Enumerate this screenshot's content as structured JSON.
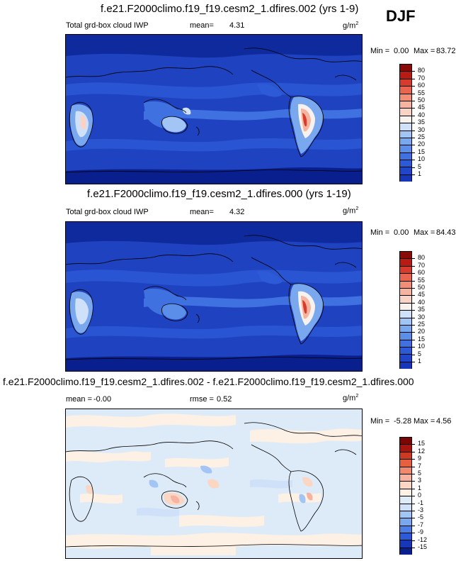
{
  "season": "DJF",
  "colors": {
    "iwp": [
      "#0a1f8e",
      "#1737b8",
      "#2146c7",
      "#2d5ad6",
      "#3f72e0",
      "#5a8ee8",
      "#7aa8ef",
      "#a3c5f5",
      "#cfe1f9",
      "#f7f2ee",
      "#f9d4c6",
      "#f6b39f",
      "#f08e77",
      "#e86550",
      "#d63c2c",
      "#b81b14",
      "#8a0a08"
    ],
    "diff": [
      "#0a1f8e",
      "#1737b8",
      "#2d5ad6",
      "#4b7fe4",
      "#7aa8ef",
      "#a3c5f5",
      "#cfe1f9",
      "#ddeaf8",
      "#fdf0e4",
      "#fbd6c2",
      "#f6b39f",
      "#ef8a6e",
      "#e4603f",
      "#cc3a22",
      "#a81510",
      "#7a0606"
    ]
  },
  "panels": [
    {
      "title": "f.e21.F2000climo.f19_f19.cesm2_1.dfires.002 (yrs 1-9)",
      "left_label": "Total grd-box cloud IWP",
      "mean_label": "mean=",
      "mean_value": "4.31",
      "units": "g/m",
      "units_exp": "2",
      "min_label": "Min =",
      "min_value": "0.00",
      "max_label": "Max =",
      "max_value": "83.72",
      "levels": [
        "80",
        "70",
        "60",
        "55",
        "50",
        "45",
        "40",
        "35",
        "30",
        "25",
        "20",
        "15",
        "10",
        "5",
        "1"
      ]
    },
    {
      "title": "f.e21.F2000climo.f19_f19.cesm2_1.dfires.000 (yrs 1-19)",
      "left_label": "Total grd-box cloud IWP",
      "mean_label": "mean=",
      "mean_value": "4.32",
      "units": "g/m",
      "units_exp": "2",
      "min_label": "Min =",
      "min_value": "0.00",
      "max_label": "Max =",
      "max_value": "84.43",
      "levels": [
        "80",
        "70",
        "60",
        "55",
        "50",
        "45",
        "40",
        "35",
        "30",
        "25",
        "20",
        "15",
        "10",
        "5",
        "1"
      ]
    },
    {
      "title": "f.e21.F2000climo.f19_f19.cesm2_1.dfires.002 - f.e21.F2000climo.f19_f19.cesm2_1.dfires.000",
      "left_label": "mean =",
      "mean_value": "-0.00",
      "rmse_label": "rmse =",
      "rmse_value": "0.52",
      "units": "g/m",
      "units_exp": "2",
      "min_label": "Min =",
      "min_value": "-5.28",
      "max_label": "Max =",
      "max_value": "4.56",
      "levels": [
        "15",
        "12",
        "9",
        "7",
        "5",
        "3",
        "1",
        "0",
        "-1",
        "-3",
        "-5",
        "-7",
        "-9",
        "-12",
        "-15"
      ]
    }
  ]
}
